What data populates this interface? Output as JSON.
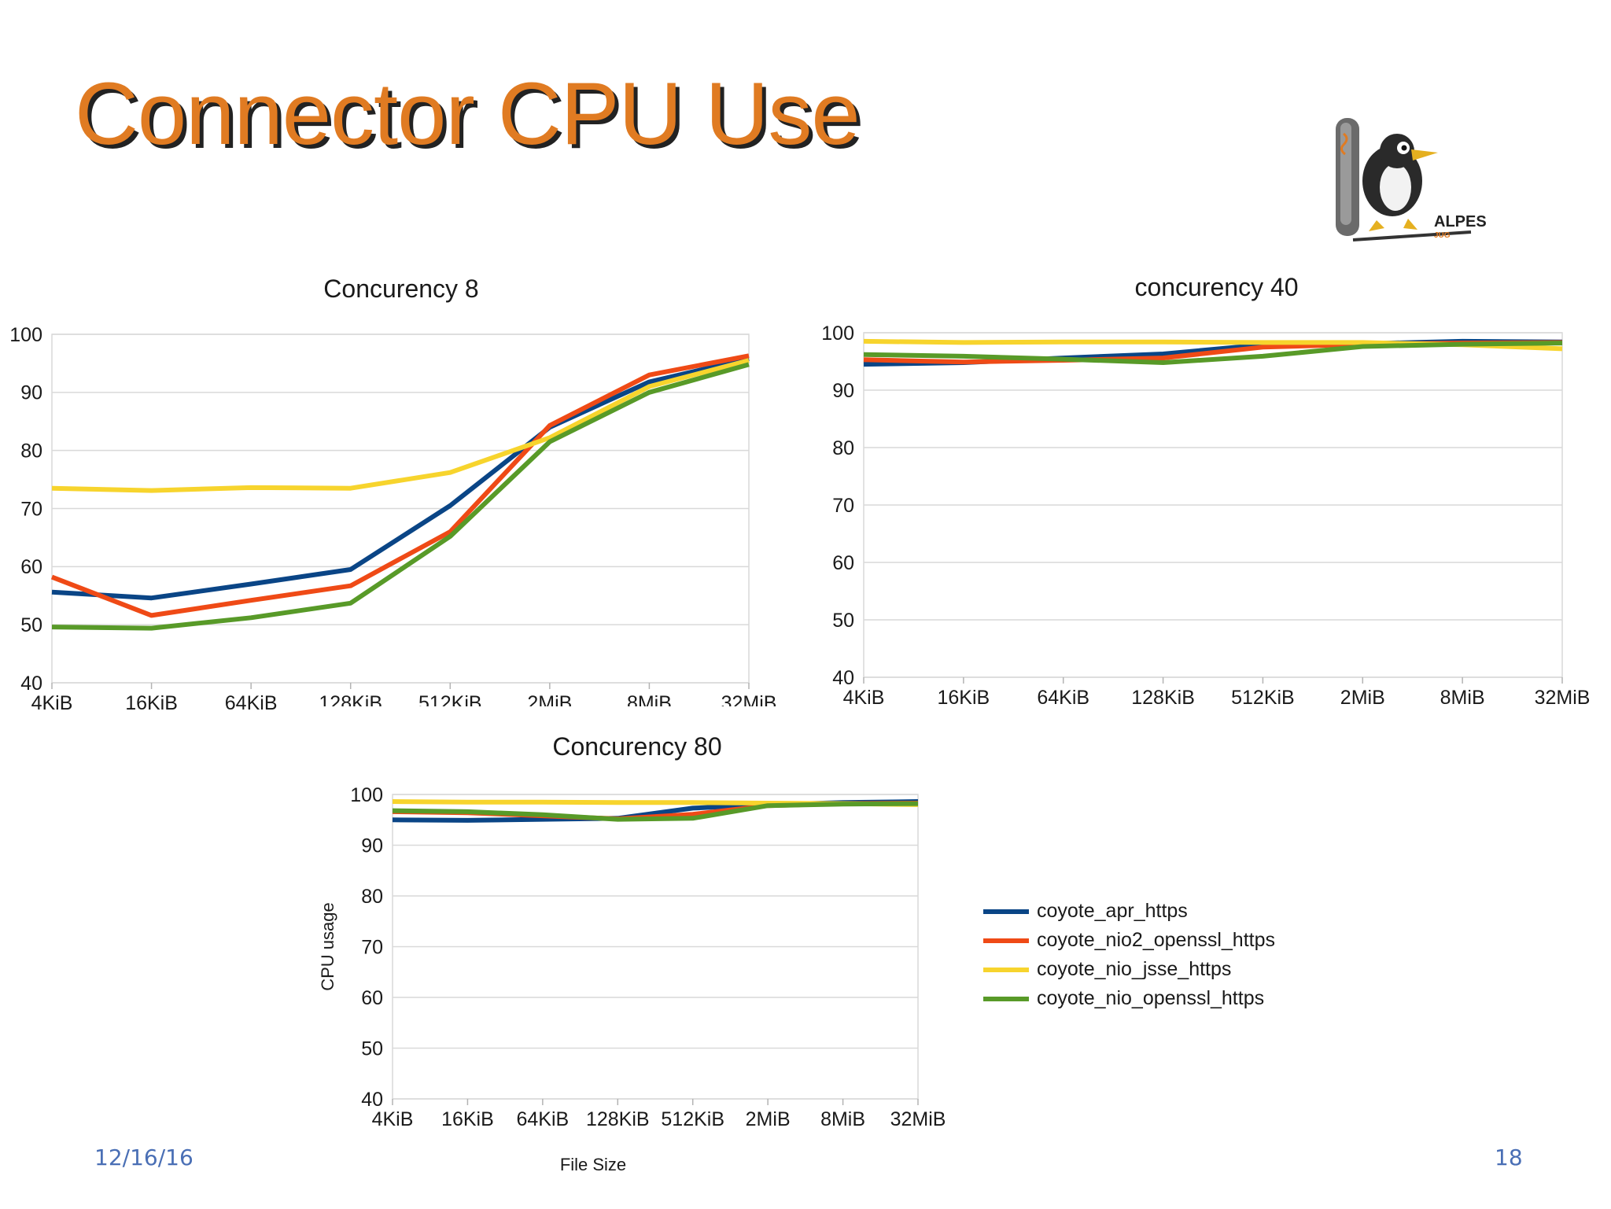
{
  "slide": {
    "title": "Connector CPU Use",
    "date": "12/16/16",
    "page": "18",
    "logo_text": "ALPES",
    "logo_subtext": "JUG"
  },
  "legend": [
    {
      "name": "coyote_apr_https",
      "color": "#0a4586"
    },
    {
      "name": "coyote_nio2_openssl_https",
      "color": "#ef4a16"
    },
    {
      "name": "coyote_nio_jsse_https",
      "color": "#f7d42d"
    },
    {
      "name": "coyote_nio_openssl_https",
      "color": "#589a28"
    }
  ],
  "chart_data": [
    {
      "type": "line",
      "title": "Concurency 8",
      "xlabel": "",
      "ylabel": "",
      "categories": [
        "4KiB",
        "16KiB",
        "64KiB",
        "128KiB",
        "512KiB",
        "2MiB",
        "8MiB",
        "32MiB"
      ],
      "ylim": [
        40,
        100
      ],
      "yticks": [
        40,
        50,
        60,
        70,
        80,
        90,
        100
      ],
      "grid": true,
      "series": [
        {
          "name": "coyote_apr_https",
          "color": "#0a4586",
          "values": [
            55.6,
            54.6,
            57,
            59.5,
            70.5,
            84,
            91.8,
            95.8
          ]
        },
        {
          "name": "coyote_nio2_openssl_https",
          "color": "#ef4a16",
          "values": [
            58.2,
            51.6,
            54.2,
            56.7,
            66,
            84.3,
            93,
            96.3
          ]
        },
        {
          "name": "coyote_nio_jsse_https",
          "color": "#f7d42d",
          "values": [
            73.5,
            73.1,
            73.6,
            73.5,
            76.2,
            82.2,
            91,
            95.5
          ]
        },
        {
          "name": "coyote_nio_openssl_https",
          "color": "#589a28",
          "values": [
            49.6,
            49.4,
            51.2,
            53.7,
            65.2,
            81.5,
            90,
            94.8
          ]
        }
      ]
    },
    {
      "type": "line",
      "title": "concurency 40",
      "xlabel": "",
      "ylabel": "",
      "categories": [
        "4KiB",
        "16KiB",
        "64KiB",
        "128KiB",
        "512KiB",
        "2MiB",
        "8MiB",
        "32MiB"
      ],
      "ylim": [
        40,
        100
      ],
      "yticks": [
        40,
        50,
        60,
        70,
        80,
        90,
        100
      ],
      "grid": true,
      "series": [
        {
          "name": "coyote_apr_https",
          "color": "#0a4586",
          "values": [
            94.5,
            94.8,
            95.6,
            96.3,
            97.9,
            98.1,
            98.5,
            98.4
          ]
        },
        {
          "name": "coyote_nio2_openssl_https",
          "color": "#ef4a16",
          "values": [
            95.3,
            94.9,
            95.2,
            95.6,
            97.5,
            98,
            98.2,
            98.3
          ]
        },
        {
          "name": "coyote_nio_jsse_https",
          "color": "#f7d42d",
          "values": [
            98.5,
            98.3,
            98.4,
            98.4,
            98.3,
            98.3,
            97.9,
            97.2
          ]
        },
        {
          "name": "coyote_nio_openssl_https",
          "color": "#589a28",
          "values": [
            96.2,
            95.9,
            95.4,
            94.8,
            95.9,
            97.6,
            98,
            98.2
          ]
        }
      ]
    },
    {
      "type": "line",
      "title": "Concurency 80",
      "xlabel": "File Size",
      "ylabel": "CPU usage",
      "categories": [
        "4KiB",
        "16KiB",
        "64KiB",
        "128KiB",
        "512KiB",
        "2MiB",
        "8MiB",
        "32MiB"
      ],
      "ylim": [
        40,
        100
      ],
      "yticks": [
        40,
        50,
        60,
        70,
        80,
        90,
        100
      ],
      "grid": true,
      "series": [
        {
          "name": "coyote_apr_https",
          "color": "#0a4586",
          "values": [
            95,
            94.9,
            95.1,
            95.3,
            97.3,
            98,
            98.4,
            98.6
          ]
        },
        {
          "name": "coyote_nio2_openssl_https",
          "color": "#ef4a16",
          "values": [
            96.6,
            96.4,
            95.8,
            95.2,
            96.1,
            97.8,
            98.2,
            98.3
          ]
        },
        {
          "name": "coyote_nio_jsse_https",
          "color": "#f7d42d",
          "values": [
            98.6,
            98.5,
            98.5,
            98.4,
            98.4,
            98.3,
            98.2,
            98
          ]
        },
        {
          "name": "coyote_nio_openssl_https",
          "color": "#589a28",
          "values": [
            96.8,
            96.6,
            96,
            95.1,
            95.3,
            97.8,
            98.1,
            98.2
          ]
        }
      ]
    }
  ]
}
